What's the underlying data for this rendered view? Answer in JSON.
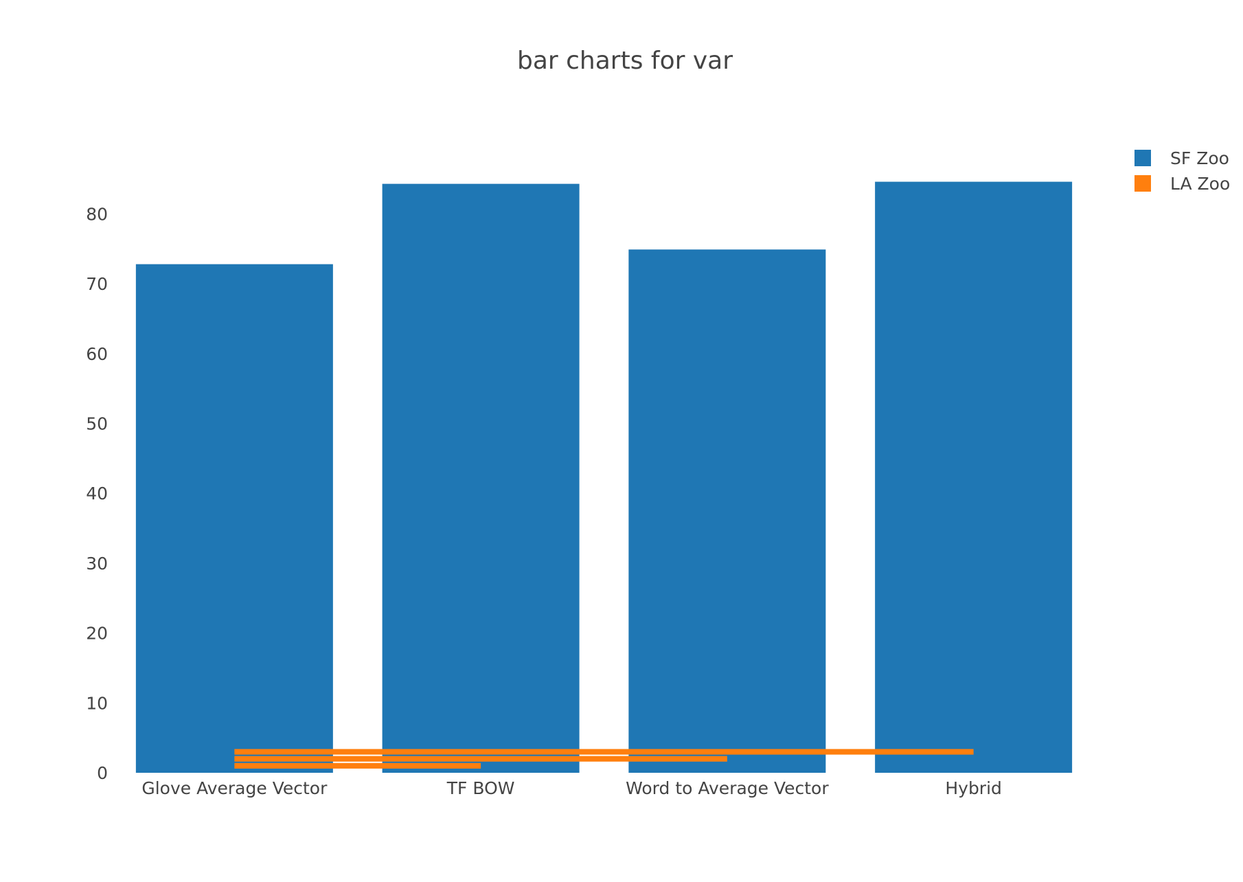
{
  "chart_data": {
    "type": "bar",
    "title": "bar charts for var",
    "xlabel": "",
    "ylabel": "",
    "categories": [
      "Glove Average Vector",
      "TF BOW",
      "Word to Average Vector",
      "Hybrid"
    ],
    "y_ticks": [
      "0",
      "10",
      "20",
      "30",
      "40",
      "50",
      "60",
      "70",
      "80"
    ],
    "ylim": [
      0,
      88
    ],
    "grid": false,
    "legend_position": "top-right",
    "series": [
      {
        "name": "SF Zoo",
        "color": "#1f77b4",
        "orientation": "vertical",
        "values": [
          72.8,
          84.3,
          74.9,
          84.6
        ]
      },
      {
        "name": "LA Zoo",
        "color": "#ff7f0e",
        "orientation": "horizontal",
        "x": [
          "Hybrid",
          "Word to Average Vector",
          "TF BOW"
        ],
        "y": [
          3,
          2,
          1
        ]
      }
    ]
  }
}
